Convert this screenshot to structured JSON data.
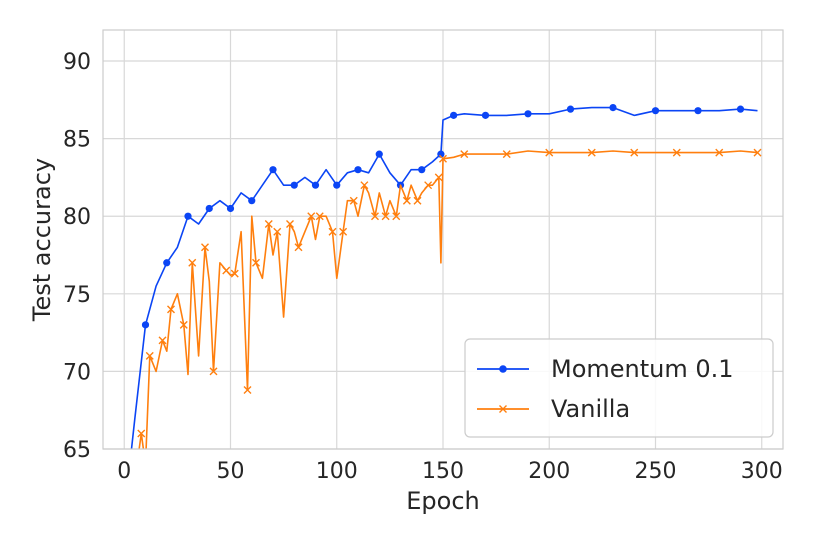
{
  "chart_data": {
    "type": "line",
    "xlabel": "Epoch",
    "ylabel": "Test accuracy",
    "xlim": [
      -10,
      310
    ],
    "ylim": [
      65,
      92
    ],
    "xticks": [
      0,
      50,
      100,
      150,
      200,
      250,
      300
    ],
    "yticks": [
      65,
      70,
      75,
      80,
      85,
      90
    ],
    "grid": true,
    "legend_position": "lower-right",
    "series": [
      {
        "name": "Momentum 0.1",
        "color": "#0b45f5",
        "marker": "circle",
        "x": [
          1,
          5,
          10,
          15,
          20,
          25,
          30,
          35,
          40,
          45,
          50,
          55,
          60,
          65,
          70,
          75,
          80,
          85,
          90,
          95,
          100,
          105,
          110,
          115,
          120,
          125,
          130,
          135,
          140,
          145,
          149,
          150,
          155,
          160,
          170,
          180,
          190,
          200,
          210,
          220,
          230,
          240,
          250,
          260,
          270,
          280,
          290,
          298
        ],
        "y": [
          62,
          67,
          73,
          75.5,
          77,
          78,
          80,
          79.5,
          80.5,
          81,
          80.5,
          81.5,
          81,
          82,
          83,
          82,
          82,
          82.5,
          82,
          83,
          82,
          82.8,
          83,
          82.8,
          84,
          82.8,
          82,
          83,
          83,
          83.5,
          84,
          86.2,
          86.5,
          86.6,
          86.5,
          86.5,
          86.6,
          86.6,
          86.9,
          87,
          87,
          86.5,
          86.8,
          86.8,
          86.8,
          86.8,
          86.9,
          86.8
        ]
      },
      {
        "name": "Vanilla",
        "color": "#ff7f0e",
        "marker": "x",
        "x": [
          1,
          5,
          8,
          10,
          12,
          15,
          18,
          20,
          22,
          25,
          28,
          30,
          32,
          35,
          38,
          40,
          42,
          45,
          48,
          50,
          52,
          55,
          58,
          60,
          62,
          65,
          68,
          70,
          72,
          75,
          78,
          80,
          82,
          85,
          88,
          90,
          92,
          95,
          98,
          100,
          103,
          105,
          108,
          110,
          113,
          115,
          118,
          120,
          123,
          125,
          128,
          130,
          133,
          135,
          138,
          140,
          143,
          145,
          148,
          149,
          150,
          155,
          160,
          170,
          180,
          190,
          200,
          210,
          220,
          230,
          240,
          250,
          260,
          270,
          280,
          290,
          298
        ],
        "y": [
          62,
          63,
          66,
          64,
          71,
          70,
          72,
          71.3,
          74,
          75,
          73,
          69.8,
          77,
          71,
          78,
          75.8,
          70,
          77,
          76.5,
          76.2,
          76.3,
          79,
          68.8,
          80,
          77,
          76,
          79.5,
          77.5,
          79,
          73.5,
          79.5,
          79,
          78,
          79,
          80,
          78.5,
          80,
          80,
          79,
          76,
          79,
          81,
          81,
          80,
          82,
          81.5,
          80,
          81.5,
          80,
          81,
          80,
          82,
          81,
          82,
          81,
          81.5,
          82,
          82,
          82.5,
          77,
          83.7,
          83.8,
          84,
          84,
          84,
          84.2,
          84.1,
          84.1,
          84.1,
          84.2,
          84.1,
          84.1,
          84.1,
          84.1,
          84.1,
          84.2,
          84.1
        ]
      }
    ]
  }
}
